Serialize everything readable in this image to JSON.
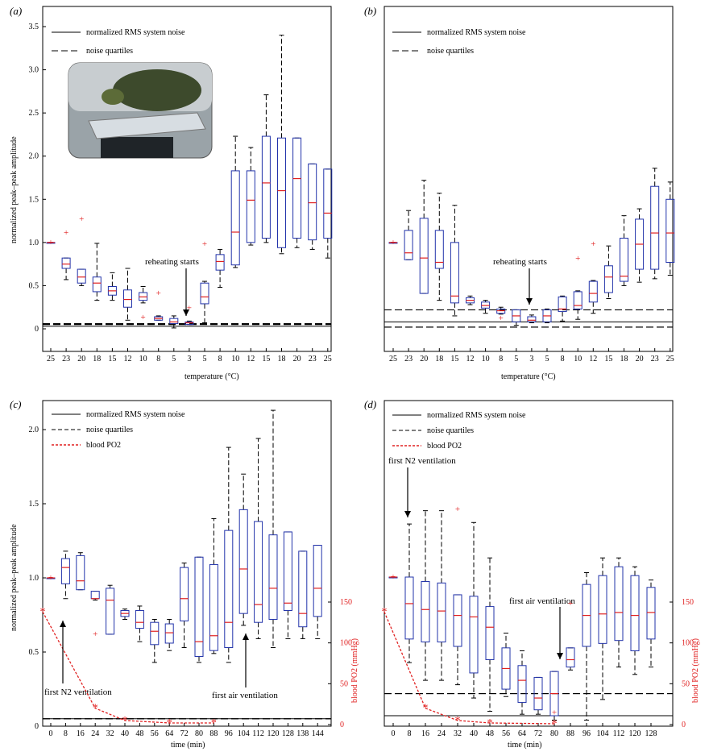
{
  "chart_data": [
    {
      "type": "box",
      "panel": "(a)",
      "xlabel": "temperature (°C)",
      "ylabel": "normalized peak–peak amplitude",
      "ylim": [
        -0.15,
        3.5
      ],
      "yticks": [
        "0",
        "0.5",
        "1.0",
        "1.5",
        "2.0",
        "2.5",
        "3.0",
        "3.5"
      ],
      "categories": [
        "25",
        "23",
        "20",
        "18",
        "15",
        "12",
        "10",
        "8",
        "5",
        "3",
        "5",
        "8",
        "10",
        "12",
        "15",
        "18",
        "20",
        "23",
        "25"
      ],
      "boxes": [
        {
          "q1": 1.0,
          "med": 1.0,
          "q3": 1.0,
          "lo": 1.0,
          "hi": 1.0
        },
        {
          "q1": 0.7,
          "med": 0.75,
          "q3": 0.82,
          "lo": 0.57,
          "hi": 0.82
        },
        {
          "q1": 0.53,
          "med": 0.6,
          "q3": 0.69,
          "lo": 0.5,
          "hi": 0.69
        },
        {
          "q1": 0.43,
          "med": 0.53,
          "q3": 0.6,
          "lo": 0.33,
          "hi": 0.99
        },
        {
          "q1": 0.39,
          "med": 0.44,
          "q3": 0.49,
          "lo": 0.33,
          "hi": 0.65
        },
        {
          "q1": 0.25,
          "med": 0.34,
          "q3": 0.45,
          "lo": 0.1,
          "hi": 0.7
        },
        {
          "q1": 0.33,
          "med": 0.37,
          "q3": 0.42,
          "lo": 0.3,
          "hi": 0.49
        },
        {
          "q1": 0.1,
          "med": 0.12,
          "q3": 0.14,
          "lo": 0.1,
          "hi": 0.15
        },
        {
          "q1": 0.06,
          "med": 0.08,
          "q3": 0.12,
          "lo": 0.01,
          "hi": 0.15
        },
        {
          "q1": 0.05,
          "med": 0.07,
          "q3": 0.08,
          "lo": 0.05,
          "hi": 0.09
        },
        {
          "q1": 0.29,
          "med": 0.37,
          "q3": 0.53,
          "lo": 0.07,
          "hi": 0.55
        },
        {
          "q1": 0.68,
          "med": 0.78,
          "q3": 0.86,
          "lo": 0.48,
          "hi": 0.92
        },
        {
          "q1": 0.74,
          "med": 1.12,
          "q3": 1.83,
          "lo": 0.71,
          "hi": 2.23
        },
        {
          "q1": 1.0,
          "med": 1.49,
          "q3": 1.83,
          "lo": 0.97,
          "hi": 2.1
        },
        {
          "q1": 1.05,
          "med": 1.69,
          "q3": 2.23,
          "lo": 1.0,
          "hi": 2.71
        },
        {
          "q1": 0.94,
          "med": 1.6,
          "q3": 2.21,
          "lo": 0.87,
          "hi": 3.4
        },
        {
          "q1": 1.05,
          "med": 1.74,
          "q3": 2.21,
          "lo": 0.94,
          "hi": 2.21
        },
        {
          "q1": 1.03,
          "med": 1.46,
          "q3": 1.91,
          "lo": 0.92,
          "hi": 1.91
        },
        {
          "q1": 1.05,
          "med": 1.34,
          "q3": 1.85,
          "lo": 0.82,
          "hi": 1.85
        }
      ],
      "outliers": [
        [
          0,
          1.0
        ],
        [
          1,
          1.11
        ],
        [
          2,
          1.27
        ],
        [
          6,
          0.13
        ],
        [
          7,
          0.41
        ],
        [
          9,
          0.24
        ],
        [
          10,
          0.98
        ]
      ],
      "noise_level": 0.03,
      "noise_quartiles": [
        0.05,
        0.06
      ],
      "legend": [
        "normalized RMS system noise",
        "noise quartiles"
      ],
      "annotations": [
        "reheating starts"
      ]
    },
    {
      "type": "box",
      "panel": "(b)",
      "xlabel": "temperature (°C)",
      "ylabel": "",
      "ylim": [
        -0.15,
        3.5
      ],
      "categories": [
        "25",
        "23",
        "20",
        "18",
        "15",
        "12",
        "10",
        "8",
        "5",
        "3",
        "5",
        "8",
        "10",
        "12",
        "15",
        "18",
        "20",
        "23",
        "25"
      ],
      "boxes": [
        {
          "q1": 1.0,
          "med": 1.0,
          "q3": 1.0,
          "lo": 1.0,
          "hi": 1.0
        },
        {
          "q1": 0.8,
          "med": 0.88,
          "q3": 1.14,
          "lo": 0.8,
          "hi": 1.37
        },
        {
          "q1": 0.41,
          "med": 0.82,
          "q3": 1.28,
          "lo": 0.41,
          "hi": 1.72
        },
        {
          "q1": 0.7,
          "med": 0.77,
          "q3": 1.14,
          "lo": 0.33,
          "hi": 1.57
        },
        {
          "q1": 0.3,
          "med": 0.38,
          "q3": 1.0,
          "lo": 0.15,
          "hi": 1.43
        },
        {
          "q1": 0.3,
          "med": 0.33,
          "q3": 0.36,
          "lo": 0.28,
          "hi": 0.38
        },
        {
          "q1": 0.24,
          "med": 0.27,
          "q3": 0.31,
          "lo": 0.18,
          "hi": 0.33
        },
        {
          "q1": 0.18,
          "med": 0.21,
          "q3": 0.23,
          "lo": 0.17,
          "hi": 0.25
        },
        {
          "q1": 0.08,
          "med": 0.15,
          "q3": 0.22,
          "lo": 0.04,
          "hi": 0.22
        },
        {
          "q1": 0.08,
          "med": 0.1,
          "q3": 0.14,
          "lo": 0.07,
          "hi": 0.16
        },
        {
          "q1": 0.08,
          "med": 0.15,
          "q3": 0.22,
          "lo": 0.07,
          "hi": 0.23
        },
        {
          "q1": 0.2,
          "med": 0.23,
          "q3": 0.37,
          "lo": 0.09,
          "hi": 0.38
        },
        {
          "q1": 0.23,
          "med": 0.27,
          "q3": 0.43,
          "lo": 0.11,
          "hi": 0.44
        },
        {
          "q1": 0.31,
          "med": 0.41,
          "q3": 0.55,
          "lo": 0.18,
          "hi": 0.56
        },
        {
          "q1": 0.42,
          "med": 0.6,
          "q3": 0.73,
          "lo": 0.35,
          "hi": 0.96
        },
        {
          "q1": 0.55,
          "med": 0.61,
          "q3": 1.05,
          "lo": 0.5,
          "hi": 1.31
        },
        {
          "q1": 0.69,
          "med": 0.98,
          "q3": 1.27,
          "lo": 0.54,
          "hi": 1.39
        },
        {
          "q1": 0.69,
          "med": 1.11,
          "q3": 1.65,
          "lo": 0.58,
          "hi": 1.86
        },
        {
          "q1": 0.77,
          "med": 1.11,
          "q3": 1.5,
          "lo": 0.62,
          "hi": 1.7
        }
      ],
      "outliers": [
        [
          0,
          1.0
        ],
        [
          7,
          0.12
        ],
        [
          12,
          0.81
        ],
        [
          13,
          0.98
        ]
      ],
      "noise_level": 0.08,
      "noise_quartiles": [
        0.02,
        0.22
      ],
      "legend": [
        "normalized RMS system noise",
        "noise quartiles"
      ],
      "annotations": [
        "reheating starts"
      ]
    },
    {
      "type": "box",
      "panel": "(c)",
      "xlabel": "time (min)",
      "ylabel": "normalized peak–peak amplitude",
      "ylabel_right": "blood PO2 (mmHg)",
      "ylim": [
        0,
        2.15
      ],
      "yticks": [
        "0",
        "0.5",
        "1.0",
        "1.5",
        "2.0"
      ],
      "yticks_right": [
        "0",
        "50",
        "100",
        "150"
      ],
      "categories": [
        "0",
        "8",
        "16",
        "24",
        "32",
        "40",
        "48",
        "56",
        "64",
        "72",
        "80",
        "88",
        "96",
        "104",
        "112",
        "120",
        "128",
        "138",
        "144"
      ],
      "boxes": [
        {
          "q1": 1.0,
          "med": 1.0,
          "q3": 1.0,
          "lo": 1.0,
          "hi": 1.0
        },
        {
          "q1": 0.96,
          "med": 1.07,
          "q3": 1.13,
          "lo": 0.86,
          "hi": 1.18
        },
        {
          "q1": 0.92,
          "med": 0.98,
          "q3": 1.15,
          "lo": 0.92,
          "hi": 1.17
        },
        {
          "q1": 0.86,
          "med": 0.86,
          "q3": 0.91,
          "lo": 0.85,
          "hi": 0.91
        },
        {
          "q1": 0.62,
          "med": 0.85,
          "q3": 0.93,
          "lo": 0.62,
          "hi": 0.95
        },
        {
          "q1": 0.74,
          "med": 0.76,
          "q3": 0.78,
          "lo": 0.72,
          "hi": 0.79
        },
        {
          "q1": 0.66,
          "med": 0.7,
          "q3": 0.78,
          "lo": 0.57,
          "hi": 0.81
        },
        {
          "q1": 0.55,
          "med": 0.64,
          "q3": 0.7,
          "lo": 0.43,
          "hi": 0.72
        },
        {
          "q1": 0.56,
          "med": 0.63,
          "q3": 0.69,
          "lo": 0.51,
          "hi": 0.72
        },
        {
          "q1": 0.71,
          "med": 0.86,
          "q3": 1.07,
          "lo": 0.53,
          "hi": 1.1
        },
        {
          "q1": 0.47,
          "med": 0.57,
          "q3": 1.14,
          "lo": 0.43,
          "hi": 1.14
        },
        {
          "q1": 0.51,
          "med": 0.61,
          "q3": 1.09,
          "lo": 0.49,
          "hi": 1.4
        },
        {
          "q1": 0.53,
          "med": 0.7,
          "q3": 1.32,
          "lo": 0.43,
          "hi": 1.88
        },
        {
          "q1": 0.76,
          "med": 1.06,
          "q3": 1.46,
          "lo": 0.68,
          "hi": 1.7
        },
        {
          "q1": 0.7,
          "med": 0.82,
          "q3": 1.38,
          "lo": 0.59,
          "hi": 1.94
        },
        {
          "q1": 0.72,
          "med": 0.93,
          "q3": 1.29,
          "lo": 0.53,
          "hi": 2.13
        },
        {
          "q1": 0.78,
          "med": 0.83,
          "q3": 1.31,
          "lo": 0.59,
          "hi": 1.31
        },
        {
          "q1": 0.67,
          "med": 0.76,
          "q3": 1.18,
          "lo": 0.59,
          "hi": 1.18
        },
        {
          "q1": 0.74,
          "med": 0.93,
          "q3": 1.22,
          "lo": 0.59,
          "hi": 1.22
        }
      ],
      "outliers": [
        [
          0,
          1.0
        ],
        [
          3,
          0.62
        ]
      ],
      "noise_level": 0.05,
      "noise_quartiles": [
        0.05,
        0.05
      ],
      "blood_po2": {
        "x": [
          "0",
          "24",
          "40",
          "64",
          "88"
        ],
        "values": [
          138,
          20,
          5,
          2,
          2
        ]
      },
      "legend": [
        "normalized RMS system noise",
        "noise quartiles",
        "blood PO2"
      ],
      "annotations": [
        "first N2 ventilation",
        "first air ventilation"
      ]
    },
    {
      "type": "box",
      "panel": "(d)",
      "xlabel": "time (min)",
      "ylabel": "",
      "ylabel_right": "blood PO2 (mmHg)",
      "ylim": [
        0,
        2.15
      ],
      "yticks_right": [
        "0",
        "50",
        "100",
        "150"
      ],
      "categories": [
        "0",
        "8",
        "16",
        "24",
        "32",
        "40",
        "48",
        "56",
        "64",
        "72",
        "80",
        "88",
        "96",
        "104",
        "112",
        "120",
        "128"
      ],
      "boxes": [
        {
          "q1": 1.0,
          "med": 1.0,
          "q3": 1.0,
          "lo": 1.0,
          "hi": 1.0
        },
        {
          "q1": 0.58,
          "med": 0.82,
          "q3": 1.0,
          "lo": 0.42,
          "hi": 1.36
        },
        {
          "q1": 0.56,
          "med": 0.78,
          "q3": 0.97,
          "lo": 0.3,
          "hi": 1.45
        },
        {
          "q1": 0.56,
          "med": 0.77,
          "q3": 0.96,
          "lo": 0.3,
          "hi": 1.45
        },
        {
          "q1": 0.53,
          "med": 0.74,
          "q3": 0.88,
          "lo": 0.27,
          "hi": 0.88
        },
        {
          "q1": 0.35,
          "med": 0.73,
          "q3": 0.87,
          "lo": 0.18,
          "hi": 1.37
        },
        {
          "q1": 0.44,
          "med": 0.66,
          "q3": 0.8,
          "lo": 0.09,
          "hi": 1.13
        },
        {
          "q1": 0.24,
          "med": 0.38,
          "q3": 0.52,
          "lo": 0.19,
          "hi": 0.62
        },
        {
          "q1": 0.15,
          "med": 0.3,
          "q3": 0.4,
          "lo": 0.07,
          "hi": 0.5
        },
        {
          "q1": 0.1,
          "med": 0.18,
          "q3": 0.32,
          "lo": 0.07,
          "hi": 0.32
        },
        {
          "q1": 0.06,
          "med": 0.21,
          "q3": 0.36,
          "lo": 0.03,
          "hi": 0.36
        },
        {
          "q1": 0.39,
          "med": 0.44,
          "q3": 0.52,
          "lo": 0.37,
          "hi": 0.52
        },
        {
          "q1": 0.53,
          "med": 0.74,
          "q3": 0.95,
          "lo": 0.03,
          "hi": 1.03
        },
        {
          "q1": 0.55,
          "med": 0.75,
          "q3": 1.01,
          "lo": 0.17,
          "hi": 1.13
        },
        {
          "q1": 0.57,
          "med": 0.76,
          "q3": 1.07,
          "lo": 0.39,
          "hi": 1.13
        },
        {
          "q1": 0.5,
          "med": 0.74,
          "q3": 1.01,
          "lo": 0.34,
          "hi": 1.07
        },
        {
          "q1": 0.58,
          "med": 0.76,
          "q3": 0.93,
          "lo": 0.39,
          "hi": 0.98
        }
      ],
      "outliers": [
        [
          0,
          1.0
        ],
        [
          4,
          1.46
        ],
        [
          10,
          0.08
        ],
        [
          11,
          0.82
        ]
      ],
      "noise_level": 0.06,
      "noise_quartiles": [
        0.21,
        0.21
      ],
      "blood_po2": {
        "x": [
          "0",
          "16",
          "32",
          "48",
          "80"
        ],
        "values": [
          138,
          20,
          5,
          2,
          1
        ]
      },
      "legend": [
        "normalized RMS system noise",
        "noise quartiles",
        "blood PO2"
      ],
      "annotations": [
        "first N2 ventilation",
        "first air ventilation"
      ]
    }
  ]
}
